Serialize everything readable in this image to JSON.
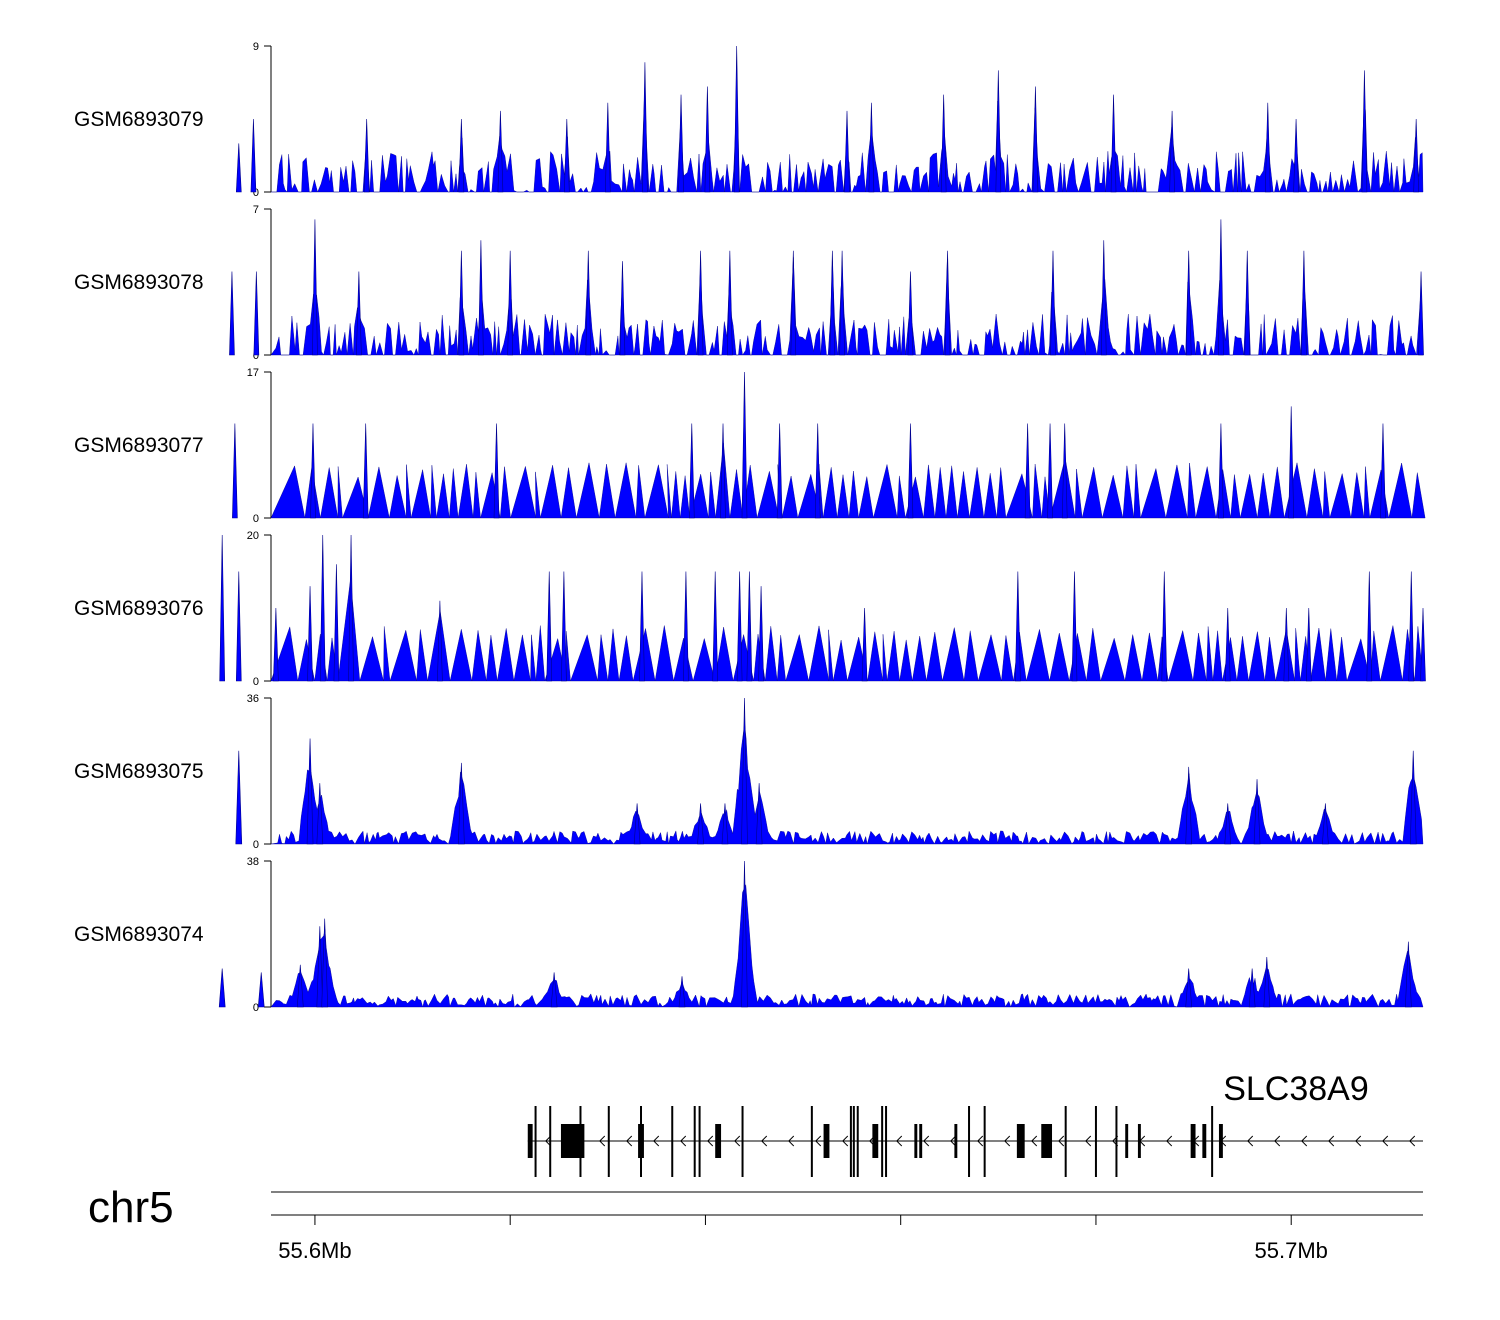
{
  "chart_data": {
    "type": "area",
    "title": "",
    "tracks": [
      {
        "name": "GSM6893079",
        "ymin": 0,
        "ymax": 9,
        "peaks": [
          [
            55.5922,
            3
          ],
          [
            55.5937,
            4.5
          ],
          [
            55.6053,
            4.5
          ],
          [
            55.615,
            4.5
          ],
          [
            55.619,
            5
          ],
          [
            55.6258,
            4.5
          ],
          [
            55.63,
            5.5
          ],
          [
            55.6338,
            8
          ],
          [
            55.6375,
            6
          ],
          [
            55.6402,
            6.5
          ],
          [
            55.6432,
            9
          ],
          [
            55.6545,
            5
          ],
          [
            55.657,
            5.5
          ],
          [
            55.6644,
            6
          ],
          [
            55.67,
            7.5
          ],
          [
            55.6738,
            6.5
          ],
          [
            55.6818,
            6
          ],
          [
            55.6878,
            5
          ],
          [
            55.6976,
            5.5
          ],
          [
            55.7005,
            4.5
          ],
          [
            55.7075,
            7.5
          ],
          [
            55.7128,
            4.5
          ]
        ]
      },
      {
        "name": "GSM6893078",
        "ymin": 0,
        "ymax": 7,
        "peaks": [
          [
            55.5915,
            4
          ],
          [
            55.594,
            4
          ],
          [
            55.6,
            6.5
          ],
          [
            55.6045,
            4
          ],
          [
            55.615,
            5
          ],
          [
            55.617,
            5.5
          ],
          [
            55.62,
            5
          ],
          [
            55.628,
            5
          ],
          [
            55.6315,
            4.5
          ],
          [
            55.6395,
            5
          ],
          [
            55.6425,
            5
          ],
          [
            55.649,
            5
          ],
          [
            55.653,
            5
          ],
          [
            55.654,
            5
          ],
          [
            55.661,
            4
          ],
          [
            55.6648,
            5
          ],
          [
            55.6756,
            5
          ],
          [
            55.6808,
            5.5
          ],
          [
            55.6895,
            5
          ],
          [
            55.6928,
            6.5
          ],
          [
            55.6955,
            5
          ],
          [
            55.7013,
            5
          ],
          [
            55.7133,
            4
          ]
        ]
      },
      {
        "name": "GSM6893077",
        "ymin": 0,
        "ymax": 17,
        "peaks": [
          [
            55.5918,
            11
          ],
          [
            55.5998,
            11
          ],
          [
            55.6052,
            11
          ],
          [
            55.6186,
            11
          ],
          [
            55.6386,
            11
          ],
          [
            55.6418,
            11
          ],
          [
            55.644,
            17
          ],
          [
            55.6476,
            11
          ],
          [
            55.6515,
            11
          ],
          [
            55.661,
            11
          ],
          [
            55.673,
            11
          ],
          [
            55.6753,
            11
          ],
          [
            55.6768,
            11
          ],
          [
            55.6928,
            11
          ],
          [
            55.7,
            13
          ],
          [
            55.7094,
            11
          ]
        ]
      },
      {
        "name": "GSM6893076",
        "ymin": 0,
        "ymax": 20,
        "peaks": [
          [
            55.5905,
            20
          ],
          [
            55.5922,
            15
          ],
          [
            55.596,
            10
          ],
          [
            55.5995,
            13
          ],
          [
            55.6008,
            20
          ],
          [
            55.6022,
            16
          ],
          [
            55.6037,
            20
          ],
          [
            55.6128,
            11
          ],
          [
            55.624,
            15
          ],
          [
            55.6255,
            15
          ],
          [
            55.6335,
            15
          ],
          [
            55.638,
            15
          ],
          [
            55.641,
            15
          ],
          [
            55.6435,
            15
          ],
          [
            55.6445,
            15
          ],
          [
            55.6457,
            13
          ],
          [
            55.6563,
            10
          ],
          [
            55.672,
            15
          ],
          [
            55.6778,
            15
          ],
          [
            55.687,
            15
          ],
          [
            55.6935,
            10
          ],
          [
            55.6995,
            10
          ],
          [
            55.7018,
            10
          ],
          [
            55.708,
            15
          ],
          [
            55.7123,
            15
          ],
          [
            55.7135,
            10
          ]
        ]
      },
      {
        "name": "GSM6893075",
        "ymin": 0,
        "ymax": 36,
        "peaks": [
          [
            55.5922,
            23
          ],
          [
            55.5995,
            26
          ],
          [
            55.6005,
            15
          ],
          [
            55.615,
            20
          ],
          [
            55.633,
            10
          ],
          [
            55.6395,
            10
          ],
          [
            55.642,
            10
          ],
          [
            55.644,
            36
          ],
          [
            55.6455,
            15
          ],
          [
            55.6895,
            19
          ],
          [
            55.6935,
            10
          ],
          [
            55.6965,
            16
          ],
          [
            55.7035,
            10
          ],
          [
            55.7125,
            23
          ]
        ]
      },
      {
        "name": "GSM6893074",
        "ymin": 0,
        "ymax": 38,
        "peaks": [
          [
            55.5905,
            10
          ],
          [
            55.5945,
            9
          ],
          [
            55.5985,
            11
          ],
          [
            55.6005,
            21
          ],
          [
            55.601,
            23
          ],
          [
            55.6245,
            9
          ],
          [
            55.6376,
            8
          ],
          [
            55.644,
            38
          ],
          [
            55.6895,
            10
          ],
          [
            55.696,
            10
          ],
          [
            55.6975,
            13
          ],
          [
            55.712,
            17
          ]
        ]
      }
    ],
    "axis": {
      "chromosome": "chr5",
      "xlim": [
        55.5955,
        55.7135
      ],
      "ticks": [
        55.6,
        55.62,
        55.64,
        55.66,
        55.68,
        55.7
      ],
      "tick_labels": [
        "55.6Mb",
        "",
        "",
        "",
        "",
        "55.7Mb"
      ]
    },
    "gene": {
      "name": "SLC38A9",
      "strand": "-",
      "start": 55.6218,
      "end": 55.7135,
      "exons": [
        [
          55.6218,
          55.6223
        ],
        [
          55.6252,
          55.6276
        ],
        [
          55.6331,
          55.6337
        ],
        [
          55.641,
          55.6416
        ],
        [
          55.6521,
          55.6527
        ],
        [
          55.6571,
          55.6577
        ],
        [
          55.6614,
          55.6617
        ],
        [
          55.6619,
          55.6622
        ],
        [
          55.6655,
          55.6658
        ],
        [
          55.6719,
          55.6727
        ],
        [
          55.6744,
          55.6755
        ],
        [
          55.683,
          55.6833
        ],
        [
          55.6843,
          55.6846
        ],
        [
          55.6897,
          55.6902
        ],
        [
          55.6909,
          55.6913
        ],
        [
          55.6926,
          55.693
        ]
      ],
      "ticks": [
        55.6226,
        55.6241,
        55.6272,
        55.6301,
        55.6334,
        55.6366,
        55.6389,
        55.6394,
        55.6438,
        55.6509,
        55.6549,
        55.6552,
        55.6556,
        55.6581,
        55.6585,
        55.667,
        55.6686,
        55.6769,
        55.68,
        55.6821,
        55.6919
      ]
    },
    "colors": {
      "signal": "#0000ff",
      "gene": "#000000",
      "axis": "#000000"
    }
  }
}
